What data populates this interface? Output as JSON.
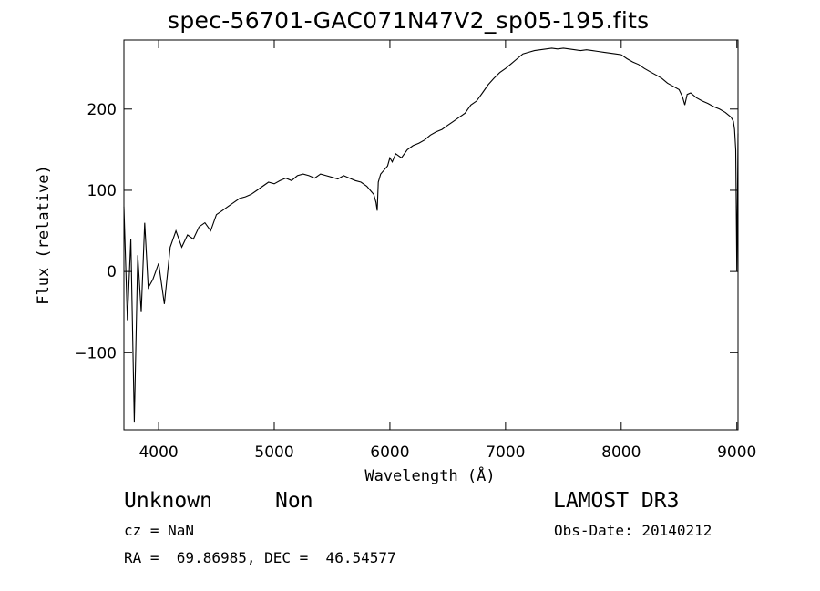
{
  "header": {
    "title": "spec-56701-GAC071N47V2_sp05-195.fits"
  },
  "info": {
    "obj_class": "Unknown",
    "obj_subclass": "Non",
    "survey": "LAMOST DR3",
    "cz": "cz = NaN",
    "obs_date": "Obs-Date: 20140212",
    "coords": "RA =  69.86985, DEC =  46.54577"
  },
  "chart_data": {
    "type": "line",
    "title": "spec-56701-GAC071N47V2_sp05-195.fits",
    "xlabel": "Wavelength (Å)",
    "ylabel": "Flux (relative)",
    "xlim": [
      3700,
      9010
    ],
    "ylim": [
      -195,
      285
    ],
    "xticks": [
      4000,
      5000,
      6000,
      7000,
      8000,
      9000
    ],
    "yticks": [
      -100,
      0,
      100,
      200
    ],
    "grid": false,
    "series": [
      {
        "x": [
          3700,
          3730,
          3760,
          3790,
          3820,
          3850,
          3880,
          3910,
          3950,
          4000,
          4050,
          4100,
          4150,
          4200,
          4250,
          4300,
          4350,
          4400,
          4450,
          4500,
          4550,
          4600,
          4650,
          4700,
          4750,
          4800,
          4850,
          4900,
          4950,
          5000,
          5050,
          5100,
          5150,
          5200,
          5250,
          5300,
          5350,
          5400,
          5450,
          5500,
          5550,
          5600,
          5650,
          5700,
          5750,
          5800,
          5830,
          5860,
          5880,
          5890,
          5900,
          5920,
          5950,
          5980,
          6000,
          6020,
          6050,
          6100,
          6150,
          6200,
          6250,
          6300,
          6350,
          6400,
          6450,
          6500,
          6550,
          6600,
          6650,
          6700,
          6750,
          6800,
          6850,
          6900,
          6950,
          7000,
          7050,
          7100,
          7150,
          7200,
          7250,
          7300,
          7350,
          7400,
          7450,
          7500,
          7550,
          7600,
          7650,
          7700,
          7750,
          7800,
          7850,
          7900,
          7950,
          8000,
          8050,
          8100,
          8150,
          8200,
          8250,
          8300,
          8350,
          8400,
          8450,
          8500,
          8530,
          8550,
          8570,
          8600,
          8650,
          8700,
          8750,
          8800,
          8850,
          8900,
          8950,
          8970,
          8980,
          8990,
          9000,
          9010
        ],
        "y": [
          80,
          -60,
          40,
          -185,
          20,
          -50,
          60,
          -20,
          -10,
          10,
          -40,
          30,
          50,
          30,
          45,
          40,
          55,
          60,
          50,
          70,
          75,
          80,
          85,
          90,
          92,
          95,
          100,
          105,
          110,
          108,
          112,
          115,
          112,
          118,
          120,
          118,
          115,
          120,
          118,
          116,
          114,
          118,
          115,
          112,
          110,
          105,
          100,
          95,
          85,
          75,
          110,
          120,
          125,
          130,
          140,
          135,
          145,
          140,
          150,
          155,
          158,
          162,
          168,
          172,
          175,
          180,
          185,
          190,
          195,
          205,
          210,
          220,
          230,
          238,
          245,
          250,
          256,
          262,
          268,
          270,
          272,
          273,
          274,
          275,
          274,
          275,
          274,
          273,
          272,
          273,
          272,
          271,
          270,
          269,
          268,
          267,
          262,
          258,
          255,
          250,
          246,
          242,
          238,
          232,
          228,
          224,
          215,
          205,
          218,
          220,
          214,
          210,
          207,
          203,
          200,
          196,
          190,
          185,
          175,
          150,
          0,
          170
        ]
      }
    ]
  }
}
